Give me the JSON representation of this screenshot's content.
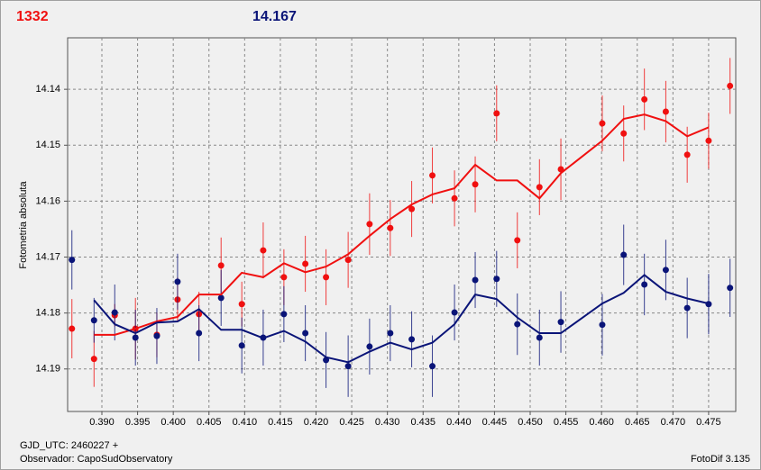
{
  "chart_data": {
    "type": "scatter",
    "ylabel": "Fotometria absoluta",
    "xlim": [
      0.3852,
      0.4788
    ],
    "ylim": [
      14.1976,
      14.1308
    ],
    "xticks": [
      {
        "value": 0.39,
        "label": "0.390"
      },
      {
        "value": 0.395,
        "label": "0.395"
      },
      {
        "value": 0.4,
        "label": "0.400"
      },
      {
        "value": 0.405,
        "label": "0.405"
      },
      {
        "value": 0.41,
        "label": "0.410"
      },
      {
        "value": 0.415,
        "label": "0.415"
      },
      {
        "value": 0.42,
        "label": "0.420"
      },
      {
        "value": 0.425,
        "label": "0.425"
      },
      {
        "value": 0.43,
        "label": "0.430"
      },
      {
        "value": 0.435,
        "label": "0.435"
      },
      {
        "value": 0.44,
        "label": "0.440"
      },
      {
        "value": 0.445,
        "label": "0.445"
      },
      {
        "value": 0.45,
        "label": "0.450"
      },
      {
        "value": 0.455,
        "label": "0.455"
      },
      {
        "value": 0.46,
        "label": "0.460"
      },
      {
        "value": 0.465,
        "label": "0.465"
      },
      {
        "value": 0.47,
        "label": "0.470"
      },
      {
        "value": 0.475,
        "label": "0.475"
      }
    ],
    "yticks": [
      14.14,
      14.15,
      14.16,
      14.17,
      14.18,
      14.19
    ],
    "grid": true,
    "x": [
      0.3858,
      0.3889,
      0.3918,
      0.3947,
      0.3977,
      0.4006,
      0.4036,
      0.4067,
      0.4096,
      0.4126,
      0.4155,
      0.4185,
      0.4214,
      0.4245,
      0.4275,
      0.4304,
      0.4334,
      0.4363,
      0.4394,
      0.4423,
      0.4453,
      0.4482,
      0.4513,
      0.4543,
      0.4601,
      0.4631,
      0.466,
      0.469,
      0.472,
      0.475,
      0.478
    ],
    "series": [
      {
        "name": "1332",
        "color": "#f01010",
        "mode": "markers",
        "values": [
          14.1828,
          14.1882,
          14.1804,
          14.1828,
          14.1839,
          14.1776,
          14.1802,
          14.1715,
          14.1784,
          14.1688,
          14.1736,
          14.1712,
          14.1736,
          14.1705,
          14.1641,
          14.1648,
          14.1614,
          14.1554,
          14.1595,
          14.157,
          14.1443,
          14.167,
          14.1575,
          14.1543,
          14.1461,
          14.1479,
          14.1418,
          14.144,
          14.1517,
          14.1492,
          14.1394
        ],
        "errors": [
          0.0053,
          0.005,
          0.002,
          0.0055,
          0.004,
          0.004,
          0.004,
          0.005,
          0.004,
          0.005,
          0.005,
          0.005,
          0.005,
          0.005,
          0.0055,
          0.005,
          0.005,
          0.005,
          0.005,
          0.005,
          0.005,
          0.005,
          0.005,
          0.0055,
          0.005,
          0.005,
          0.0055,
          0.0055,
          0.005,
          0.005,
          0.005
        ]
      },
      {
        "name": "14.167",
        "color": "#0a1478",
        "mode": "markers",
        "values": [
          14.1705,
          14.1813,
          14.1799,
          14.1844,
          14.1841,
          14.1744,
          14.1836,
          14.1773,
          14.1858,
          14.1844,
          14.1802,
          14.1836,
          14.1884,
          14.1895,
          14.186,
          14.1836,
          14.1847,
          14.1895,
          14.1799,
          14.1741,
          14.1739,
          14.182,
          14.1844,
          14.1816,
          14.1821,
          14.1696,
          14.1749,
          14.1723,
          14.1791,
          14.1784,
          14.1755
        ],
        "errors": [
          0.0053,
          0.004,
          0.005,
          0.005,
          0.005,
          0.005,
          0.005,
          0.005,
          0.005,
          0.005,
          0.005,
          0.005,
          0.005,
          0.0055,
          0.005,
          0.005,
          0.005,
          0.0055,
          0.005,
          0.005,
          0.005,
          0.0055,
          0.005,
          0.0055,
          0.0055,
          0.0054,
          0.0055,
          0.0054,
          0.0054,
          0.0054,
          0.0052
        ]
      },
      {
        "color": "#f01010",
        "mode": "lines",
        "values": [
          null,
          14.1839,
          14.1839,
          14.1828,
          14.1815,
          14.1807,
          14.1767,
          14.1767,
          14.1728,
          14.1736,
          14.1711,
          14.1727,
          14.1717,
          14.1695,
          14.1662,
          14.1632,
          14.1606,
          14.1588,
          14.1577,
          14.1535,
          14.1563,
          14.1563,
          14.1595,
          14.155,
          14.1492,
          14.1453,
          14.1445,
          14.1457,
          14.1484,
          14.1468,
          null
        ]
      },
      {
        "color": "#0a1478",
        "mode": "lines",
        "values": [
          null,
          14.1777,
          14.182,
          14.1836,
          14.1817,
          14.1815,
          14.1793,
          14.183,
          14.183,
          14.1845,
          14.1832,
          14.1851,
          14.1879,
          14.1888,
          14.1869,
          14.1853,
          14.1865,
          14.1853,
          14.182,
          14.1767,
          14.1775,
          14.1808,
          14.1836,
          14.1836,
          14.1783,
          14.1764,
          14.1732,
          14.1762,
          14.1774,
          14.1783,
          null
        ]
      }
    ]
  },
  "footer": {
    "date": "GJD_UTC: 2460227 +",
    "observer": "Observador: CapoSudObservatory",
    "software": "FotoDif 3.135"
  }
}
